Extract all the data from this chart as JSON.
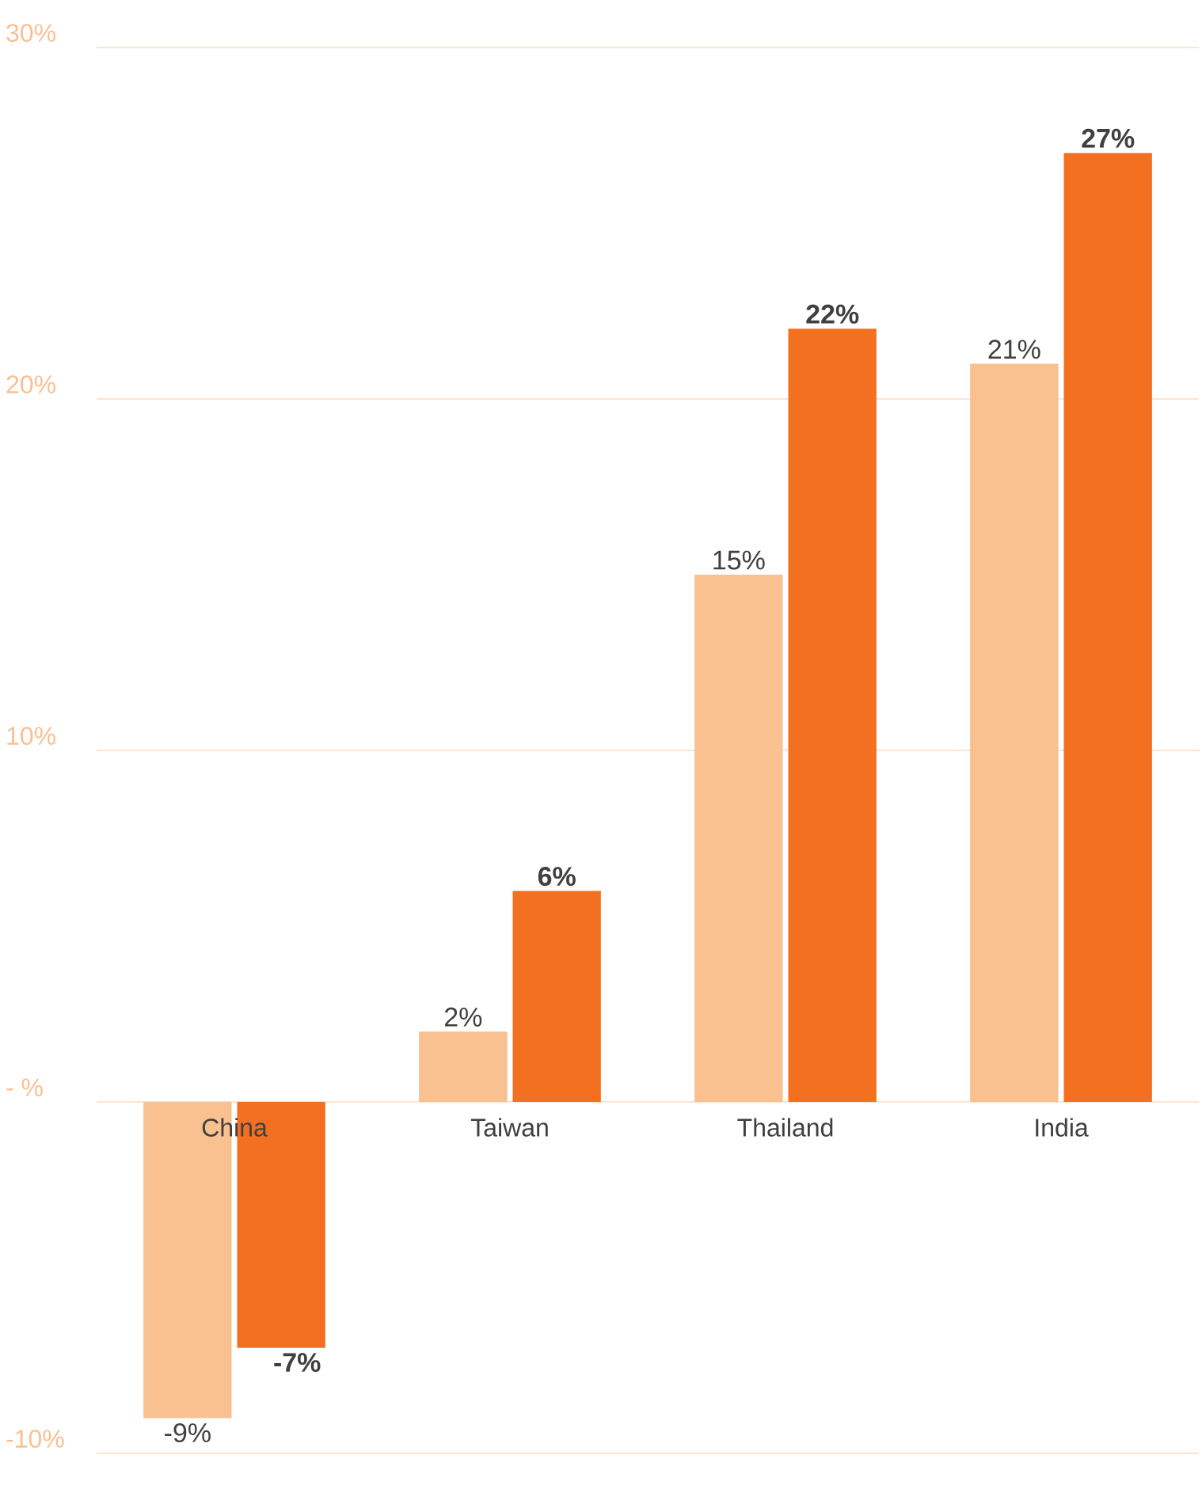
{
  "chart_data": {
    "type": "bar",
    "categories": [
      "China",
      "Taiwan",
      "Thailand",
      "India"
    ],
    "series": [
      {
        "color": "#f9c090",
        "values": [
          -9,
          2,
          15,
          21
        ],
        "value_labels": [
          "-9%",
          "2%",
          "15%",
          "21%"
        ]
      },
      {
        "color": "#f37021",
        "values": [
          -7,
          6,
          22,
          27
        ],
        "value_labels": [
          "-7%",
          "6%",
          "22%",
          "27%"
        ]
      }
    ],
    "ylim": [
      -10,
      30
    ],
    "yticks": [
      {
        "value": -10,
        "label": "-10%"
      },
      {
        "value": 0,
        "label": "- %"
      },
      {
        "value": 10,
        "label": "10%"
      },
      {
        "value": 20,
        "label": "20%"
      },
      {
        "value": 30,
        "label": "30%"
      }
    ],
    "grid": "y"
  }
}
